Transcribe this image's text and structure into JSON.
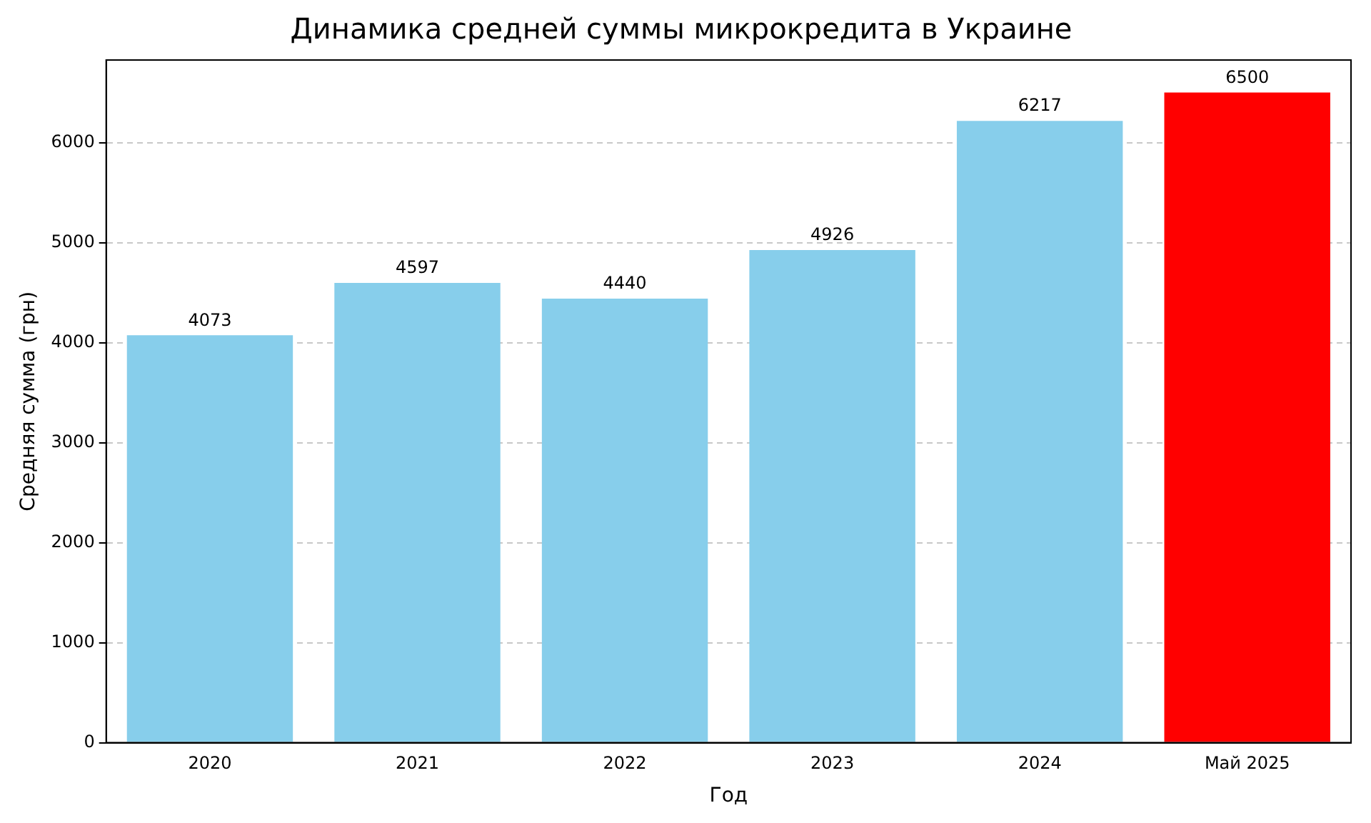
{
  "chart_data": {
    "type": "bar",
    "title": "Динамика средней суммы микрокредита в Украине",
    "xlabel": "Год",
    "ylabel": "Средняя сумма (грн)",
    "categories": [
      "2020",
      "2021",
      "2022",
      "2023",
      "2024",
      "Май 2025"
    ],
    "values": [
      4073,
      4597,
      4440,
      4926,
      6217,
      6500
    ],
    "colors": [
      "#87ceeb",
      "#87ceeb",
      "#87ceeb",
      "#87ceeb",
      "#87ceeb",
      "#ff0000"
    ],
    "ylim": [
      0,
      6825
    ],
    "yticks": [
      0,
      1000,
      2000,
      3000,
      4000,
      5000,
      6000
    ],
    "grid": "y",
    "data_labels": true,
    "legend": false
  }
}
